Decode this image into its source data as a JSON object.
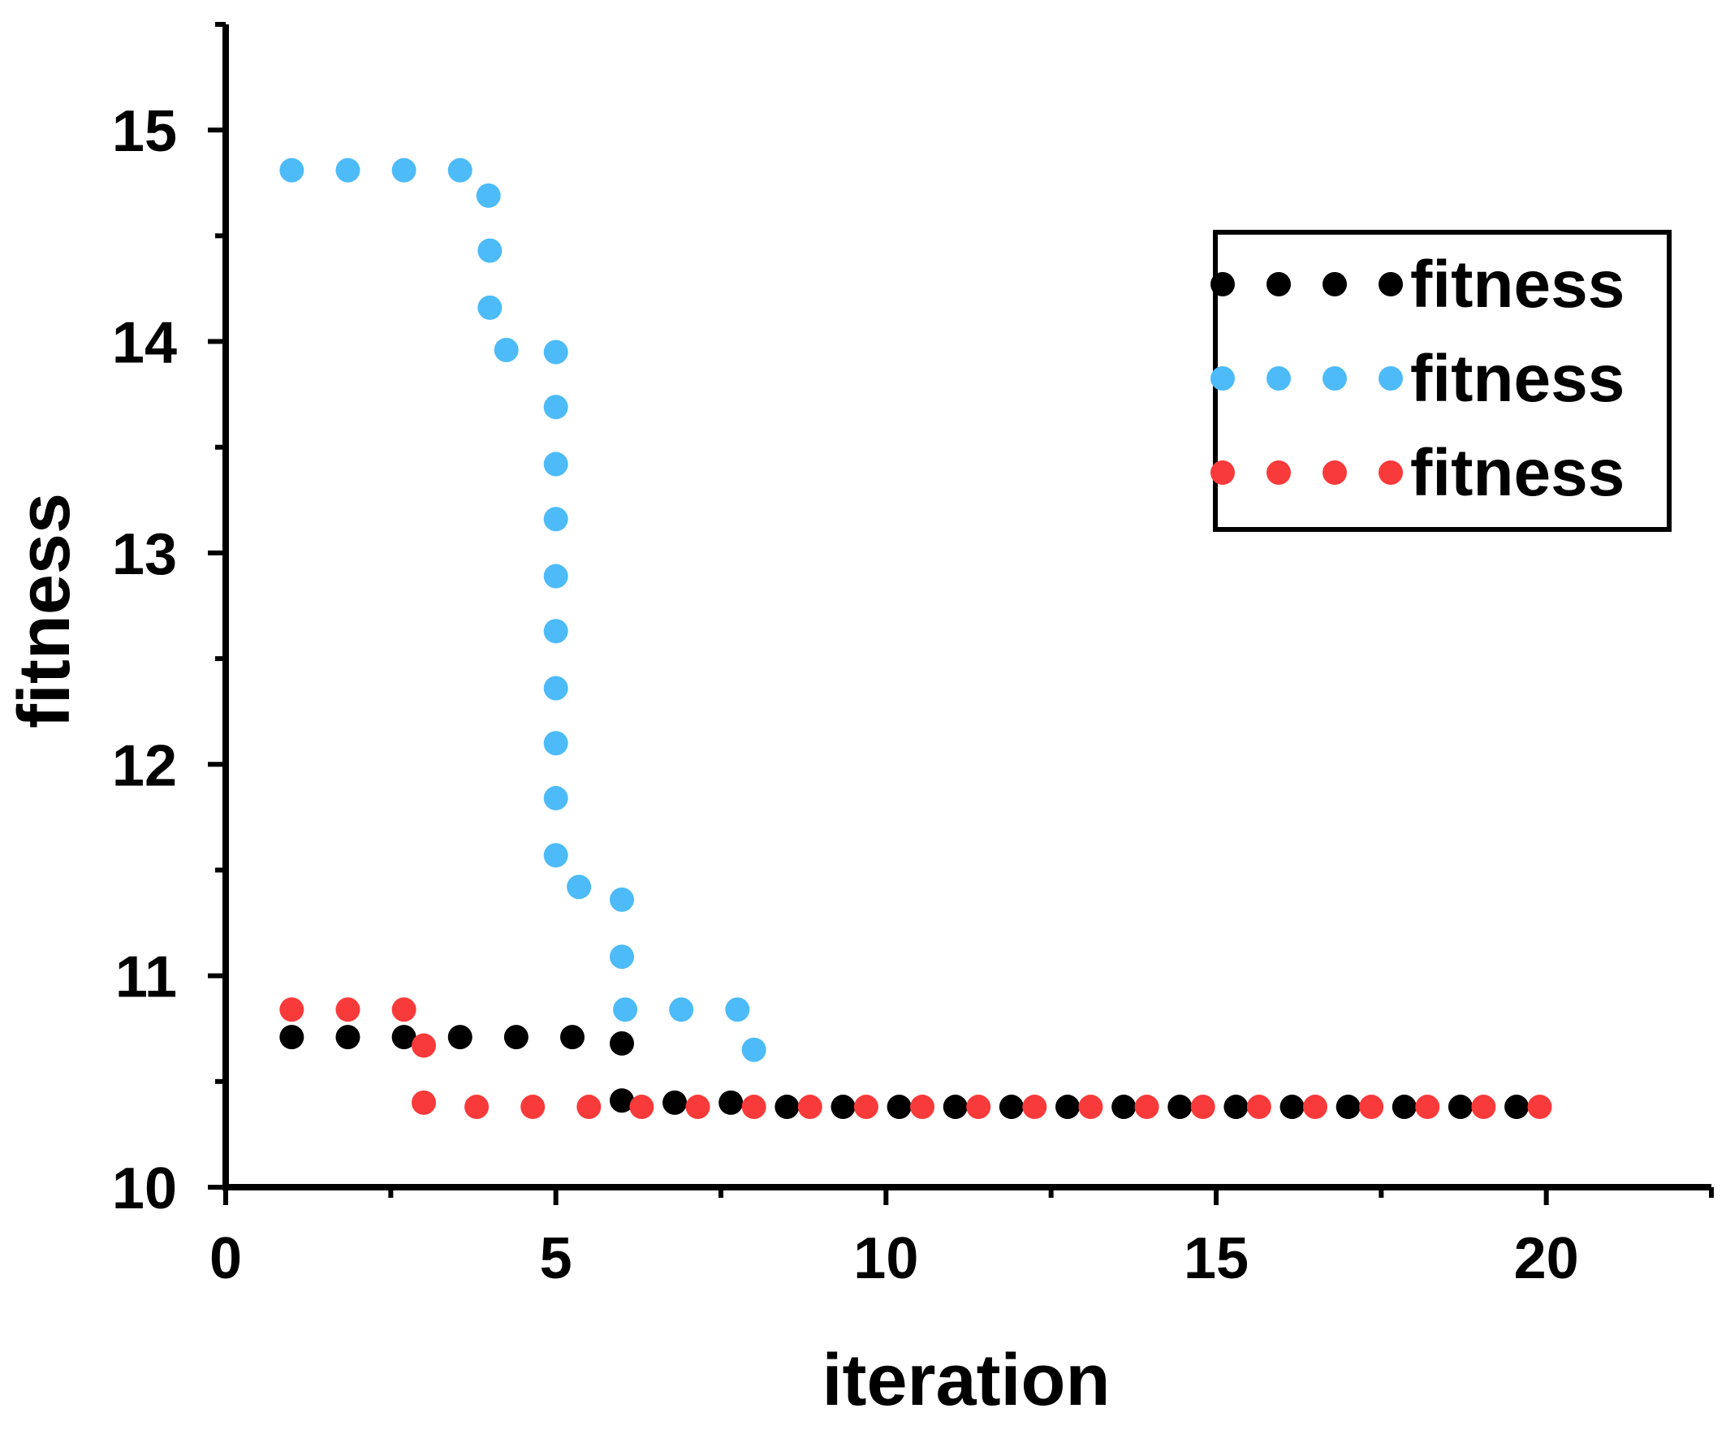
{
  "chart_data": {
    "type": "scatter",
    "title": "",
    "xlabel": "iteration",
    "ylabel": "fitness",
    "xlim": [
      0,
      22.5
    ],
    "ylim": [
      10,
      15.5
    ],
    "x_ticks": [
      0,
      5,
      10,
      15,
      20
    ],
    "x_tick_labels": [
      "0",
      "5",
      "10",
      "15",
      "20"
    ],
    "y_ticks": [
      10,
      11,
      12,
      13,
      14,
      15
    ],
    "y_tick_labels": [
      "10",
      "11",
      "12",
      "13",
      "14",
      "15"
    ],
    "grid": false,
    "legend_position": "top-right",
    "series": [
      {
        "name": "fitness",
        "color": "#000000",
        "x": [
          1.0,
          1.85,
          2.7,
          3.55,
          4.4,
          5.25,
          6.0,
          6.0,
          6.8,
          7.65,
          8.5,
          9.35,
          10.2,
          11.05,
          11.9,
          12.75,
          13.6,
          14.45,
          15.3,
          16.15,
          17.0,
          17.85,
          18.7,
          19.55
        ],
        "y": [
          10.71,
          10.71,
          10.71,
          10.71,
          10.71,
          10.71,
          10.68,
          10.41,
          10.4,
          10.4,
          10.38,
          10.38,
          10.38,
          10.38,
          10.38,
          10.38,
          10.38,
          10.38,
          10.38,
          10.38,
          10.38,
          10.38,
          10.38,
          10.38
        ]
      },
      {
        "name": "fitness",
        "color": "#4DBBF8",
        "x": [
          1.0,
          1.85,
          2.7,
          3.55,
          3.98,
          4.0,
          4.0,
          4.25,
          5.0,
          5.0,
          5.0,
          5.0,
          5.0,
          5.0,
          5.0,
          5.0,
          5.0,
          5.0,
          5.35,
          6.0,
          6.0,
          6.05,
          6.9,
          7.75,
          8.0
        ],
        "y": [
          14.81,
          14.81,
          14.81,
          14.81,
          14.69,
          14.43,
          14.16,
          13.96,
          13.95,
          13.69,
          13.42,
          13.16,
          12.89,
          12.63,
          12.36,
          12.1,
          11.84,
          11.57,
          11.42,
          11.36,
          11.09,
          10.84,
          10.84,
          10.84,
          10.65
        ]
      },
      {
        "name": "fitness",
        "color": "#F93A3A",
        "x": [
          1.0,
          1.85,
          2.7,
          3.0,
          3.0,
          3.8,
          4.65,
          5.5,
          6.3,
          7.15,
          8.0,
          8.85,
          9.7,
          10.55,
          11.4,
          12.25,
          13.1,
          13.95,
          14.8,
          15.65,
          16.5,
          17.35,
          18.2,
          19.05,
          19.9
        ],
        "y": [
          10.84,
          10.84,
          10.84,
          10.67,
          10.4,
          10.38,
          10.38,
          10.38,
          10.38,
          10.38,
          10.38,
          10.38,
          10.38,
          10.38,
          10.38,
          10.38,
          10.38,
          10.38,
          10.38,
          10.38,
          10.38,
          10.38,
          10.38,
          10.38,
          10.38
        ]
      }
    ]
  }
}
